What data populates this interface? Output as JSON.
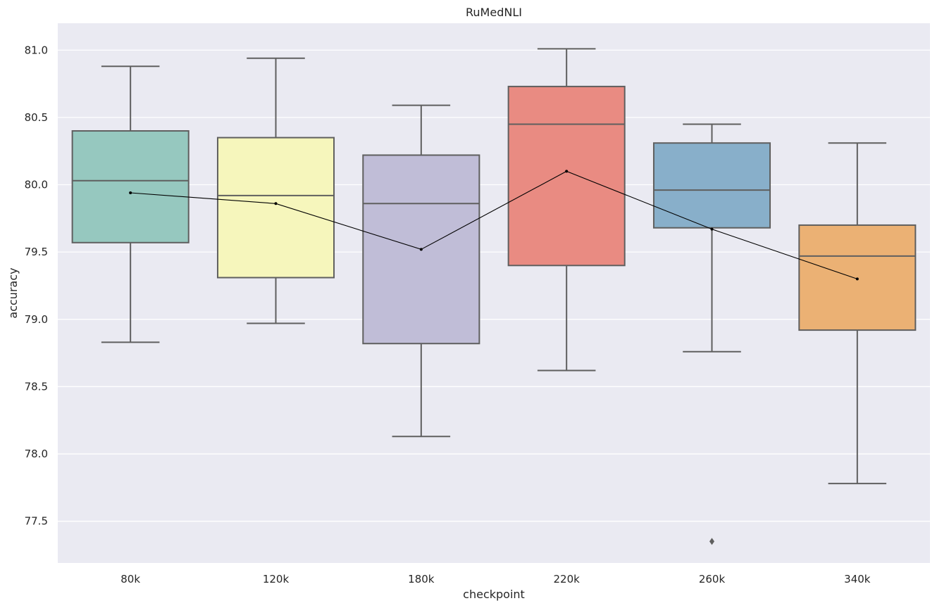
{
  "chart_data": {
    "type": "box",
    "title": "RuMedNLI",
    "xlabel": "checkpoint",
    "ylabel": "accuracy",
    "ylim": [
      77.19,
      81.2
    ],
    "yticks": [
      77.5,
      78.0,
      78.5,
      79.0,
      79.5,
      80.0,
      80.5,
      81.0
    ],
    "ytick_labels": [
      "77.5",
      "78.0",
      "78.5",
      "79.0",
      "79.5",
      "80.0",
      "80.5",
      "81.0"
    ],
    "grid": true,
    "categories": [
      "80k",
      "120k",
      "180k",
      "220k",
      "260k",
      "340k"
    ],
    "boxes": [
      {
        "category": "80k",
        "whisker_low": 78.83,
        "q1": 79.57,
        "median": 80.03,
        "q3": 80.4,
        "whisker_high": 80.88,
        "mean": 79.94,
        "outliers": [],
        "color": "#96c8bf"
      },
      {
        "category": "120k",
        "whisker_low": 78.97,
        "q1": 79.31,
        "median": 79.92,
        "q3": 80.35,
        "whisker_high": 80.94,
        "mean": 79.86,
        "outliers": [],
        "color": "#f6f6bc"
      },
      {
        "category": "180k",
        "whisker_low": 78.13,
        "q1": 78.82,
        "median": 79.86,
        "q3": 80.22,
        "whisker_high": 80.59,
        "mean": 79.52,
        "outliers": [],
        "color": "#c0bdd7"
      },
      {
        "category": "220k",
        "whisker_low": 78.62,
        "q1": 79.4,
        "median": 80.45,
        "q3": 80.73,
        "whisker_high": 81.01,
        "mean": 80.1,
        "outliers": [],
        "color": "#e98b82"
      },
      {
        "category": "260k",
        "whisker_low": 78.76,
        "q1": 79.68,
        "median": 79.96,
        "q3": 80.31,
        "whisker_high": 80.45,
        "mean": 79.67,
        "outliers": [
          77.35
        ],
        "color": "#88afca"
      },
      {
        "category": "340k",
        "whisker_low": 77.78,
        "q1": 78.92,
        "median": 79.47,
        "q3": 79.7,
        "whisker_high": 80.31,
        "mean": 79.3,
        "outliers": [],
        "color": "#ebb174"
      }
    ],
    "mean_line": {
      "color": "#000000"
    },
    "colors": {
      "background": "#eaeaf2",
      "grid": "#ffffff",
      "box_edge": "#5f5f5f"
    }
  }
}
